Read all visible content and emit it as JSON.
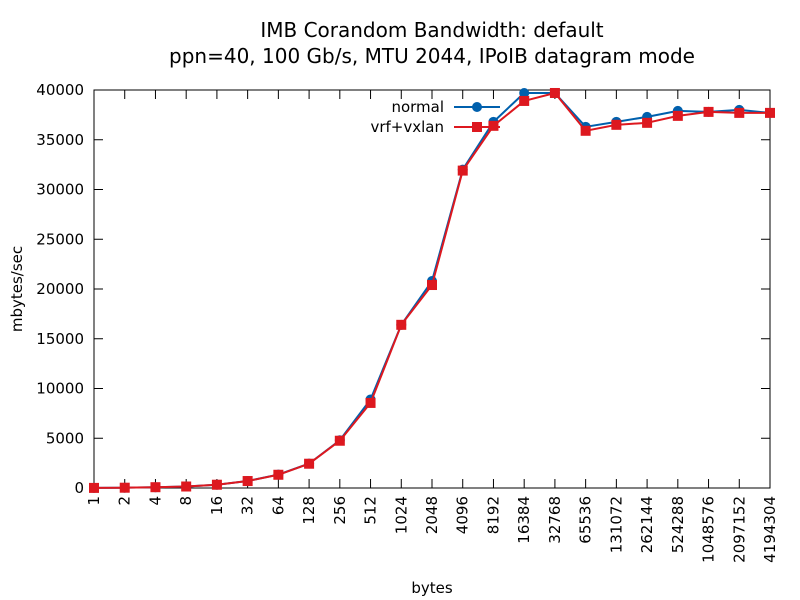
{
  "chart_data": {
    "type": "line",
    "title": "IMB Corandom Bandwidth: default",
    "subtitle": "ppn=40, 100 Gb/s, MTU 2044, IPoIB datagram mode",
    "xlabel": "bytes",
    "ylabel": "mbytes/sec",
    "ylim": [
      0,
      40000
    ],
    "yticks": [
      0,
      5000,
      10000,
      15000,
      20000,
      25000,
      30000,
      35000,
      40000
    ],
    "x_scale": "log2",
    "grid": false,
    "legend_position": "top-right",
    "x": [
      "1",
      "2",
      "4",
      "8",
      "16",
      "32",
      "64",
      "128",
      "256",
      "512",
      "1024",
      "2048",
      "4096",
      "8192",
      "16384",
      "32768",
      "65536",
      "131072",
      "262144",
      "524288",
      "1048576",
      "2097152",
      "4194304"
    ],
    "series": [
      {
        "name": "normal",
        "color": "#0060ad",
        "marker": "circle",
        "values": [
          10,
          30,
          80,
          150,
          330,
          700,
          1350,
          2450,
          4800,
          8900,
          16400,
          20800,
          32000,
          36800,
          39700,
          39700,
          36300,
          36800,
          37300,
          37900,
          37800,
          38000,
          37700
        ]
      },
      {
        "name": "vrf+vxlan",
        "color": "#dd181f",
        "marker": "square",
        "values": [
          10,
          30,
          80,
          150,
          330,
          700,
          1330,
          2440,
          4750,
          8550,
          16400,
          20400,
          31900,
          36400,
          38900,
          39700,
          35900,
          36500,
          36700,
          37400,
          37800,
          37700,
          37700
        ]
      }
    ]
  }
}
